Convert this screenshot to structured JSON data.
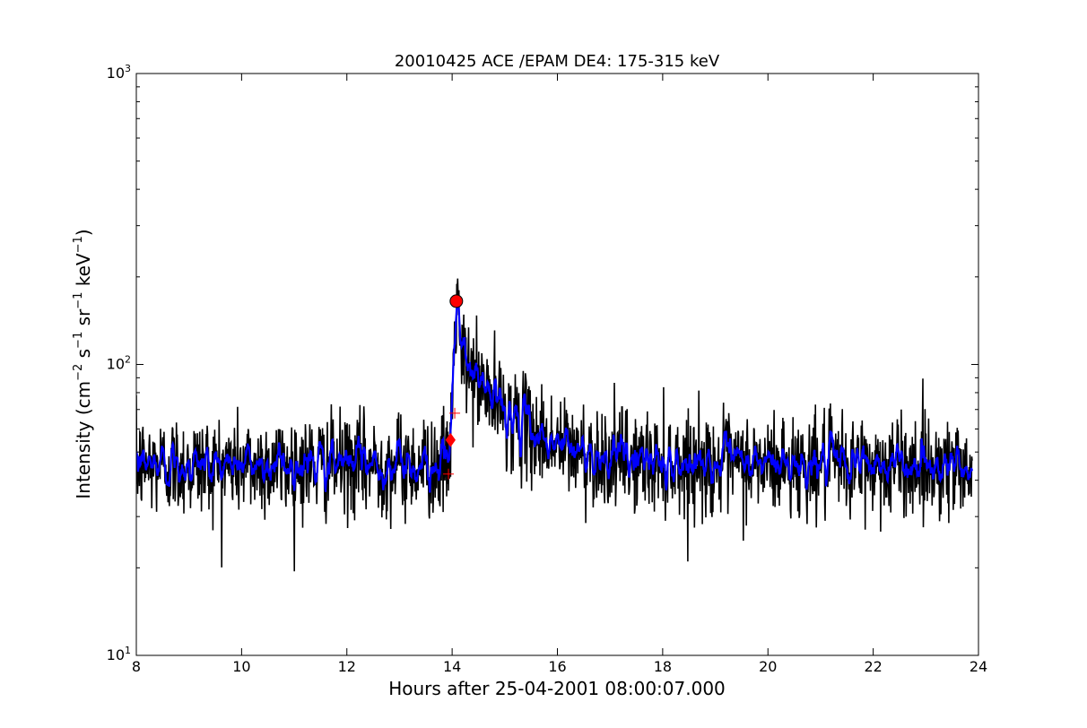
{
  "chart_data": {
    "type": "line",
    "title": "20010425 ACE /EPAM DE4: 175-315 keV",
    "xlabel": "Hours after 25-04-2001 08:00:07.000",
    "ylabel": {
      "base": "Intensity (cm",
      "exp1": "−2",
      "mid1": " s",
      "exp2": "−1",
      "mid2": " sr",
      "exp3": "−1",
      "mid3": " keV",
      "exp4": "−1",
      "end": ")"
    },
    "xlim": [
      8,
      24
    ],
    "ylim": [
      10,
      1000
    ],
    "y_scale": "log",
    "x_ticks": [
      8,
      10,
      12,
      14,
      16,
      18,
      20,
      22,
      24
    ],
    "x_tick_labels": [
      "8",
      "10",
      "12",
      "14",
      "16",
      "18",
      "20",
      "22",
      "24"
    ],
    "y_ticks": [
      10,
      100,
      1000
    ],
    "y_tick_labels": [
      {
        "base": "10",
        "exp": "1"
      },
      {
        "base": "10",
        "exp": "2"
      },
      {
        "base": "10",
        "exp": "3"
      }
    ],
    "grid": false,
    "series": [
      {
        "color": "#000000",
        "style": "raw",
        "time_range": [
          8.0,
          24.0
        ],
        "background_level": 45,
        "event_onset_hours": 14.0,
        "peak_hours": 14.08,
        "peak_value": 165,
        "decay_to_background_hours": 16.5
      },
      {
        "color": "#0000ff",
        "style": "smoothed",
        "time_range": [
          8.0,
          24.0
        ]
      }
    ],
    "markers": [
      {
        "shape": "circle",
        "color": "#ff0000",
        "x": 14.08,
        "y": 165
      },
      {
        "shape": "diamond",
        "color": "#ff0000",
        "x": 13.97,
        "y": 55
      },
      {
        "shape": "plus",
        "color": "#ff0000",
        "x": 14.05,
        "y": 68
      },
      {
        "shape": "plus",
        "color": "#ff0000",
        "x": 13.93,
        "y": 42
      }
    ]
  }
}
